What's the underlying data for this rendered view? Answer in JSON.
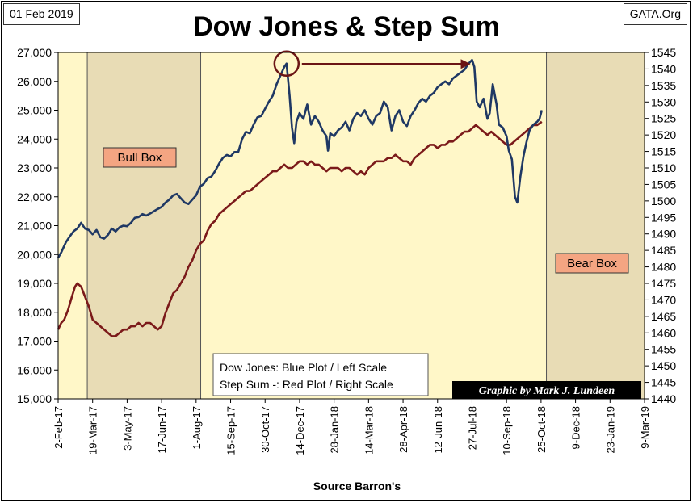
{
  "header": {
    "date": "01 Feb 2019",
    "site": "GATA.Org"
  },
  "chart_data": {
    "type": "line",
    "title": "Dow Jones & Step Sum",
    "xlabel": "Source Barron's",
    "x_tick_labels": [
      "2-Feb-17",
      "19-Mar-17",
      "3-May-17",
      "17-Jun-17",
      "1-Aug-17",
      "15-Sep-17",
      "30-Oct-17",
      "14-Dec-17",
      "28-Jan-18",
      "14-Mar-18",
      "28-Apr-18",
      "12-Jun-18",
      "27-Jul-18",
      "10-Sep-18",
      "25-Oct-18",
      "9-Dec-18",
      "23-Jan-19",
      "9-Mar-19"
    ],
    "x_range_days": [
      0,
      765
    ],
    "y_left": {
      "label": "Dow Jones",
      "min": 15000,
      "max": 27000,
      "step": 1000,
      "ticks": [
        "15,000",
        "16,000",
        "17,000",
        "18,000",
        "19,000",
        "20,000",
        "21,000",
        "22,000",
        "23,000",
        "24,000",
        "25,000",
        "26,000",
        "27,000"
      ]
    },
    "y_right": {
      "label": "Step Sum",
      "min": 1440,
      "max": 1545,
      "step": 5,
      "ticks": [
        "1440",
        "1445",
        "1450",
        "1455",
        "1460",
        "1465",
        "1470",
        "1475",
        "1480",
        "1485",
        "1490",
        "1495",
        "1500",
        "1505",
        "1510",
        "1515",
        "1520",
        "1525",
        "1530",
        "1535",
        "1540",
        "1545"
      ]
    },
    "series": [
      {
        "name": "Dow Jones",
        "axis": "left",
        "color": "#1f3864",
        "points": [
          [
            0,
            19890
          ],
          [
            4,
            20070
          ],
          [
            10,
            20420
          ],
          [
            15,
            20620
          ],
          [
            20,
            20800
          ],
          [
            25,
            20900
          ],
          [
            30,
            21100
          ],
          [
            35,
            20900
          ],
          [
            40,
            20850
          ],
          [
            45,
            20700
          ],
          [
            50,
            20850
          ],
          [
            55,
            20600
          ],
          [
            60,
            20550
          ],
          [
            65,
            20680
          ],
          [
            70,
            20900
          ],
          [
            75,
            20800
          ],
          [
            80,
            20940
          ],
          [
            85,
            21000
          ],
          [
            90,
            20980
          ],
          [
            95,
            21100
          ],
          [
            100,
            21270
          ],
          [
            105,
            21300
          ],
          [
            110,
            21400
          ],
          [
            115,
            21350
          ],
          [
            120,
            21420
          ],
          [
            125,
            21500
          ],
          [
            130,
            21580
          ],
          [
            135,
            21650
          ],
          [
            140,
            21800
          ],
          [
            145,
            21900
          ],
          [
            150,
            22050
          ],
          [
            155,
            22100
          ],
          [
            160,
            21950
          ],
          [
            165,
            21800
          ],
          [
            170,
            21750
          ],
          [
            175,
            21900
          ],
          [
            180,
            22050
          ],
          [
            185,
            22350
          ],
          [
            190,
            22450
          ],
          [
            195,
            22650
          ],
          [
            200,
            22700
          ],
          [
            205,
            22900
          ],
          [
            210,
            23150
          ],
          [
            215,
            23350
          ],
          [
            220,
            23450
          ],
          [
            225,
            23400
          ],
          [
            230,
            23550
          ],
          [
            235,
            23550
          ],
          [
            240,
            24000
          ],
          [
            245,
            24250
          ],
          [
            250,
            24200
          ],
          [
            255,
            24500
          ],
          [
            260,
            24750
          ],
          [
            265,
            24800
          ],
          [
            270,
            25050
          ],
          [
            275,
            25300
          ],
          [
            280,
            25500
          ],
          [
            285,
            25900
          ],
          [
            290,
            26200
          ],
          [
            295,
            26500
          ],
          [
            298,
            26616
          ],
          [
            302,
            25500
          ],
          [
            305,
            24400
          ],
          [
            308,
            23860
          ],
          [
            311,
            24600
          ],
          [
            315,
            24900
          ],
          [
            320,
            24700
          ],
          [
            325,
            25200
          ],
          [
            330,
            24500
          ],
          [
            335,
            24800
          ],
          [
            340,
            24600
          ],
          [
            345,
            24300
          ],
          [
            350,
            24100
          ],
          [
            352,
            23600
          ],
          [
            355,
            24200
          ],
          [
            360,
            24100
          ],
          [
            365,
            24300
          ],
          [
            370,
            24400
          ],
          [
            375,
            24600
          ],
          [
            380,
            24300
          ],
          [
            385,
            24700
          ],
          [
            390,
            24900
          ],
          [
            395,
            24800
          ],
          [
            400,
            25000
          ],
          [
            405,
            24700
          ],
          [
            410,
            24500
          ],
          [
            415,
            24800
          ],
          [
            420,
            24900
          ],
          [
            425,
            25300
          ],
          [
            430,
            25100
          ],
          [
            435,
            24300
          ],
          [
            440,
            24800
          ],
          [
            445,
            25000
          ],
          [
            450,
            24600
          ],
          [
            455,
            24450
          ],
          [
            460,
            24800
          ],
          [
            465,
            25000
          ],
          [
            470,
            25250
          ],
          [
            475,
            25400
          ],
          [
            480,
            25300
          ],
          [
            485,
            25500
          ],
          [
            490,
            25600
          ],
          [
            495,
            25800
          ],
          [
            500,
            25900
          ],
          [
            505,
            26000
          ],
          [
            510,
            25900
          ],
          [
            515,
            26100
          ],
          [
            520,
            26200
          ],
          [
            525,
            26300
          ],
          [
            530,
            26400
          ],
          [
            535,
            26600
          ],
          [
            540,
            26743
          ],
          [
            543,
            26500
          ],
          [
            546,
            25300
          ],
          [
            550,
            25100
          ],
          [
            555,
            25400
          ],
          [
            560,
            24700
          ],
          [
            563,
            24900
          ],
          [
            567,
            25900
          ],
          [
            572,
            25200
          ],
          [
            575,
            24500
          ],
          [
            580,
            24400
          ],
          [
            585,
            24100
          ],
          [
            588,
            23600
          ],
          [
            592,
            23300
          ],
          [
            596,
            22000
          ],
          [
            599,
            21800
          ],
          [
            603,
            22700
          ],
          [
            607,
            23400
          ],
          [
            611,
            23900
          ],
          [
            615,
            24300
          ],
          [
            620,
            24500
          ],
          [
            625,
            24600
          ],
          [
            628,
            24700
          ],
          [
            631,
            25000
          ]
        ]
      },
      {
        "name": "Step Sum",
        "axis": "right",
        "color": "#7b1a1a",
        "points": [
          [
            0,
            1461
          ],
          [
            4,
            1463
          ],
          [
            8,
            1464
          ],
          [
            13,
            1467
          ],
          [
            18,
            1471
          ],
          [
            22,
            1474
          ],
          [
            25,
            1475
          ],
          [
            30,
            1474
          ],
          [
            35,
            1471
          ],
          [
            40,
            1468
          ],
          [
            45,
            1464
          ],
          [
            50,
            1463
          ],
          [
            55,
            1462
          ],
          [
            60,
            1461
          ],
          [
            65,
            1460
          ],
          [
            70,
            1459
          ],
          [
            75,
            1459
          ],
          [
            80,
            1460
          ],
          [
            85,
            1461
          ],
          [
            90,
            1461
          ],
          [
            95,
            1462
          ],
          [
            100,
            1462
          ],
          [
            105,
            1463
          ],
          [
            110,
            1462
          ],
          [
            115,
            1463
          ],
          [
            120,
            1463
          ],
          [
            125,
            1462
          ],
          [
            130,
            1461
          ],
          [
            135,
            1462
          ],
          [
            140,
            1466
          ],
          [
            145,
            1469
          ],
          [
            150,
            1472
          ],
          [
            155,
            1473
          ],
          [
            160,
            1475
          ],
          [
            165,
            1477
          ],
          [
            170,
            1480
          ],
          [
            175,
            1482
          ],
          [
            180,
            1485
          ],
          [
            185,
            1487
          ],
          [
            190,
            1488
          ],
          [
            195,
            1491
          ],
          [
            200,
            1493
          ],
          [
            205,
            1494
          ],
          [
            210,
            1496
          ],
          [
            215,
            1497
          ],
          [
            220,
            1498
          ],
          [
            225,
            1499
          ],
          [
            230,
            1500
          ],
          [
            235,
            1501
          ],
          [
            240,
            1502
          ],
          [
            245,
            1503
          ],
          [
            250,
            1503
          ],
          [
            255,
            1504
          ],
          [
            260,
            1505
          ],
          [
            265,
            1506
          ],
          [
            270,
            1507
          ],
          [
            275,
            1508
          ],
          [
            280,
            1509
          ],
          [
            285,
            1509
          ],
          [
            290,
            1510
          ],
          [
            295,
            1511
          ],
          [
            300,
            1510
          ],
          [
            305,
            1510
          ],
          [
            310,
            1511
          ],
          [
            315,
            1512
          ],
          [
            320,
            1512
          ],
          [
            325,
            1511
          ],
          [
            330,
            1512
          ],
          [
            335,
            1511
          ],
          [
            340,
            1511
          ],
          [
            345,
            1510
          ],
          [
            350,
            1509
          ],
          [
            355,
            1510
          ],
          [
            360,
            1510
          ],
          [
            365,
            1510
          ],
          [
            370,
            1509
          ],
          [
            375,
            1510
          ],
          [
            380,
            1510
          ],
          [
            385,
            1509
          ],
          [
            390,
            1508
          ],
          [
            395,
            1509
          ],
          [
            400,
            1508
          ],
          [
            405,
            1510
          ],
          [
            410,
            1511
          ],
          [
            415,
            1512
          ],
          [
            420,
            1512
          ],
          [
            425,
            1512
          ],
          [
            430,
            1513
          ],
          [
            435,
            1513
          ],
          [
            440,
            1514
          ],
          [
            445,
            1513
          ],
          [
            450,
            1512
          ],
          [
            455,
            1512
          ],
          [
            460,
            1511
          ],
          [
            465,
            1513
          ],
          [
            470,
            1514
          ],
          [
            475,
            1515
          ],
          [
            480,
            1516
          ],
          [
            485,
            1517
          ],
          [
            490,
            1517
          ],
          [
            495,
            1516
          ],
          [
            500,
            1517
          ],
          [
            505,
            1517
          ],
          [
            510,
            1518
          ],
          [
            515,
            1518
          ],
          [
            520,
            1519
          ],
          [
            525,
            1520
          ],
          [
            530,
            1521
          ],
          [
            535,
            1521
          ],
          [
            540,
            1522
          ],
          [
            545,
            1523
          ],
          [
            550,
            1522
          ],
          [
            555,
            1521
          ],
          [
            560,
            1520
          ],
          [
            565,
            1521
          ],
          [
            570,
            1520
          ],
          [
            575,
            1519
          ],
          [
            580,
            1518
          ],
          [
            585,
            1517
          ],
          [
            590,
            1517
          ],
          [
            595,
            1518
          ],
          [
            600,
            1519
          ],
          [
            605,
            1520
          ],
          [
            610,
            1521
          ],
          [
            615,
            1522
          ],
          [
            620,
            1523
          ],
          [
            625,
            1523
          ],
          [
            631,
            1524
          ]
        ]
      }
    ],
    "shaded_regions": [
      {
        "name": "Bull Box",
        "start_day": 38,
        "end_day": 186,
        "color": "#e8dcb5"
      },
      {
        "name": "Bear Box",
        "start_day": 637,
        "end_day": 765,
        "color": "#e8dcb5"
      }
    ],
    "annotations": {
      "circle_center": [
        298,
        26616
      ],
      "arrow_from": [
        318,
        26600
      ],
      "arrow_to": [
        538,
        26600
      ],
      "bull_label": "Bull Box",
      "bear_label": "Bear Box",
      "legend_line1": "Dow Jones: Blue Plot / Left Scale",
      "legend_line2": "Step Sum -: Red Plot / Right Scale",
      "credit": "Graphic by Mark J. Lundeen"
    },
    "plot_background": "#fff7c8",
    "grid": false
  }
}
